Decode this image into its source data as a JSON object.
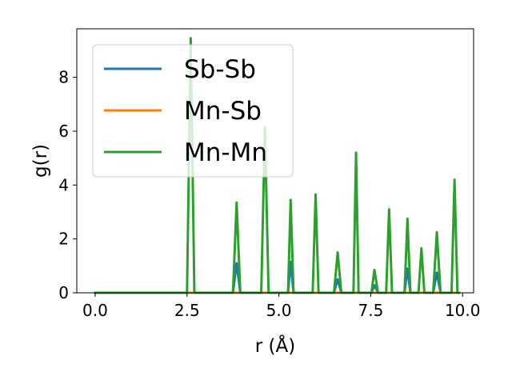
{
  "chart_data": {
    "type": "line",
    "xlabel": "r (Å)",
    "ylabel": "g(r)",
    "xlim": [
      -0.5,
      10.3
    ],
    "ylim": [
      0,
      9.8
    ],
    "xticks": [
      "0.0",
      "2.5",
      "5.0",
      "7.5",
      "10.0"
    ],
    "yticks": [
      "0",
      "2",
      "4",
      "6",
      "8"
    ],
    "legend_position": "top-left",
    "grid": false,
    "series": [
      {
        "name": "Sb-Sb",
        "color": "#1f77b4",
        "points": [
          [
            0.0,
            0
          ],
          [
            3.75,
            0
          ],
          [
            3.85,
            1.1
          ],
          [
            3.95,
            0
          ],
          [
            5.25,
            0
          ],
          [
            5.32,
            1.15
          ],
          [
            5.4,
            0
          ],
          [
            6.5,
            0
          ],
          [
            6.6,
            0.5
          ],
          [
            6.7,
            0
          ],
          [
            7.52,
            0
          ],
          [
            7.6,
            0.28
          ],
          [
            7.7,
            0
          ],
          [
            8.42,
            0
          ],
          [
            8.5,
            0.9
          ],
          [
            8.58,
            0
          ],
          [
            9.2,
            0
          ],
          [
            9.3,
            0.75
          ],
          [
            9.4,
            0
          ],
          [
            9.9,
            0
          ]
        ]
      },
      {
        "name": "Mn-Sb",
        "color": "#ff7f0e",
        "points": [
          [
            0.0,
            0
          ],
          [
            9.9,
            0
          ]
        ]
      },
      {
        "name": "Mn-Mn",
        "color": "#2ca02c",
        "points": [
          [
            0.0,
            0
          ],
          [
            2.5,
            0
          ],
          [
            2.6,
            9.45
          ],
          [
            2.7,
            0
          ],
          [
            3.75,
            0
          ],
          [
            3.85,
            3.35
          ],
          [
            3.95,
            0
          ],
          [
            4.52,
            0
          ],
          [
            4.62,
            6.15
          ],
          [
            4.72,
            0
          ],
          [
            5.25,
            0
          ],
          [
            5.32,
            3.45
          ],
          [
            5.4,
            0
          ],
          [
            5.92,
            0
          ],
          [
            6.0,
            3.65
          ],
          [
            6.08,
            0
          ],
          [
            6.5,
            0
          ],
          [
            6.6,
            1.5
          ],
          [
            6.7,
            0
          ],
          [
            7.03,
            0
          ],
          [
            7.1,
            5.2
          ],
          [
            7.17,
            0
          ],
          [
            7.52,
            0
          ],
          [
            7.6,
            0.85
          ],
          [
            7.7,
            0
          ],
          [
            7.92,
            0
          ],
          [
            8.0,
            3.1
          ],
          [
            8.08,
            0
          ],
          [
            8.42,
            0
          ],
          [
            8.5,
            2.75
          ],
          [
            8.58,
            0
          ],
          [
            8.8,
            0
          ],
          [
            8.88,
            1.65
          ],
          [
            8.96,
            0
          ],
          [
            9.2,
            0
          ],
          [
            9.3,
            2.25
          ],
          [
            9.4,
            0
          ],
          [
            9.7,
            0
          ],
          [
            9.78,
            4.2
          ],
          [
            9.86,
            0
          ],
          [
            9.9,
            0
          ]
        ]
      }
    ]
  }
}
